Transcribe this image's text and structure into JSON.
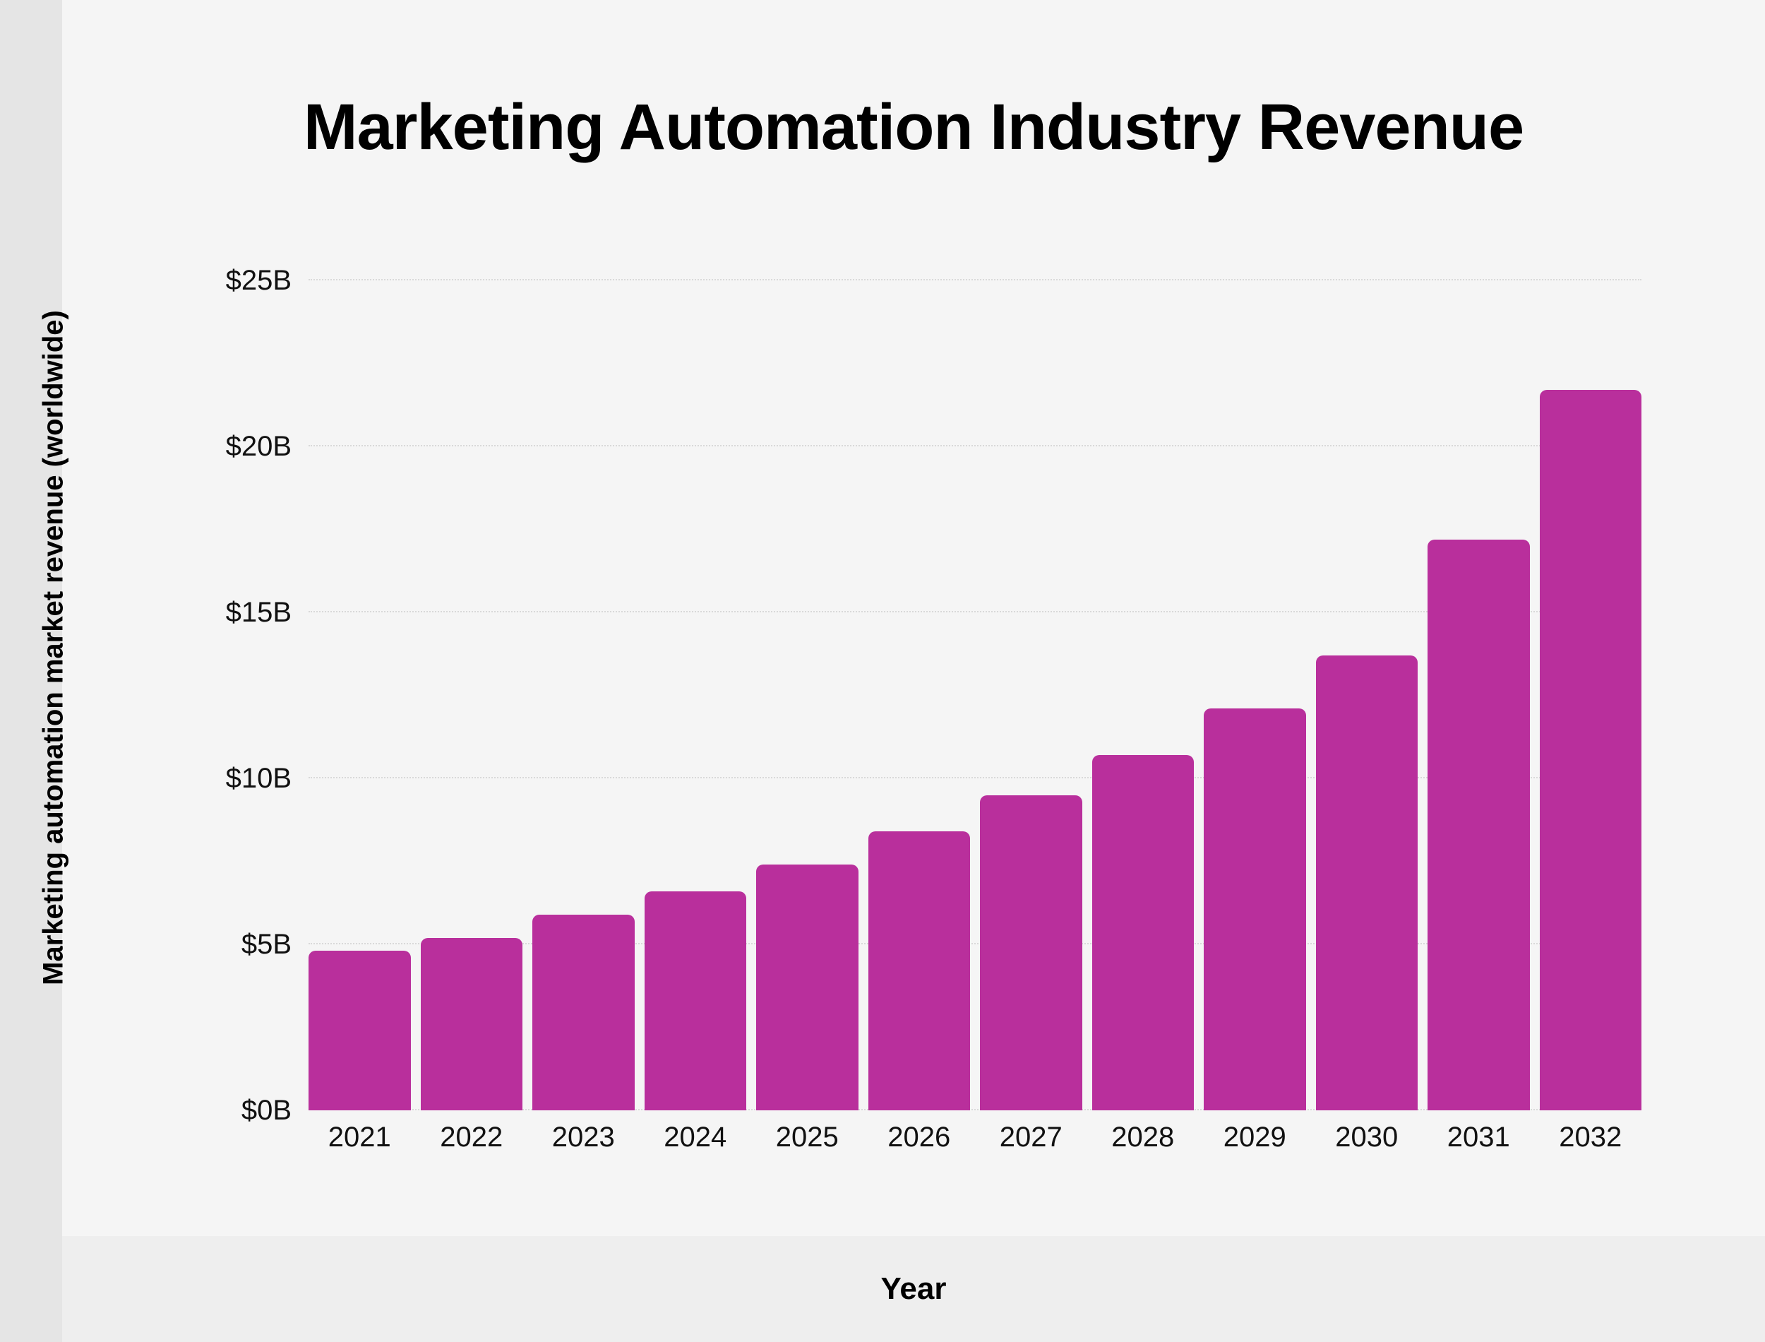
{
  "chart_data": {
    "type": "bar",
    "title": "Marketing Automation Industry Revenue",
    "ylabel": "Marketing automation market revenue (worldwide)",
    "xlabel": "Year",
    "categories": [
      "2021",
      "2022",
      "2023",
      "2024",
      "2025",
      "2026",
      "2027",
      "2028",
      "2029",
      "2030",
      "2031",
      "2032"
    ],
    "values": [
      4.8,
      5.2,
      5.9,
      6.6,
      7.4,
      8.4,
      9.5,
      10.7,
      12.1,
      13.7,
      17.2,
      21.7
    ],
    "ylim": [
      0,
      25
    ],
    "yticks": [
      {
        "value": 25,
        "label": "$25B"
      },
      {
        "value": 20,
        "label": "$20B"
      },
      {
        "value": 15,
        "label": "$15B"
      },
      {
        "value": 10,
        "label": "$10B"
      },
      {
        "value": 5,
        "label": "$5B"
      },
      {
        "value": 0,
        "label": "$0B"
      }
    ],
    "grid": true,
    "legend": false,
    "bar_count": 12,
    "colors": {
      "bar": "#b92f9c",
      "gridline": "#d9d9d9",
      "text": "#111111",
      "title": "#000000",
      "card_background": "#f5f5f5",
      "left_band": "#e5e5e5",
      "bottom_band": "#eeeeee"
    }
  }
}
